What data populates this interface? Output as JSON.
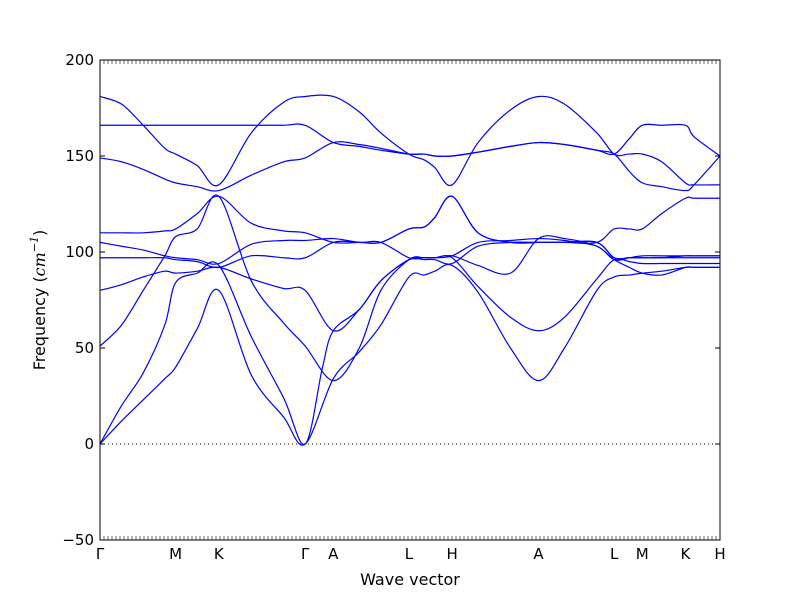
{
  "chart_data": {
    "type": "line",
    "title": "",
    "xlabel": "Wave vector",
    "ylabel_prefix": "Frequency (",
    "ylabel_unit": "cm",
    "ylabel_exp": "−1",
    "ylabel_suffix": ")",
    "ylim": [
      -50,
      200
    ],
    "yticks": [
      -50,
      0,
      50,
      100,
      150,
      200
    ],
    "x_range": [
      0,
      28.7
    ],
    "high_symmetry_points": [
      {
        "label": "Γ",
        "x": 0
      },
      {
        "label": "M",
        "x": 3.5
      },
      {
        "label": "K",
        "x": 5.5
      },
      {
        "label": "Γ",
        "x": 9.5
      },
      {
        "label": "A",
        "x": 10.8
      },
      {
        "label": "L",
        "x": 14.3
      },
      {
        "label": "H",
        "x": 16.3
      },
      {
        "label": "A",
        "x": 20.3
      },
      {
        "label": "L",
        "x": 23.8
      },
      {
        "label": "M",
        "x": 25.1
      },
      {
        "label": "K",
        "x": 27.1
      },
      {
        "label": "H",
        "x": 28.7
      }
    ],
    "zero_line": 0,
    "grid": false,
    "series_color": "#0000ff",
    "bands": [
      {
        "x": [
          0,
          1,
          2,
          3,
          3.5,
          4.5,
          5.5,
          7,
          8.5,
          9.5,
          10.8,
          12,
          13,
          14.3,
          15,
          15.5,
          16.3,
          17.5,
          19,
          20.3,
          21.5,
          23,
          23.8,
          24.5,
          25.1,
          26,
          27.1,
          27.5,
          28.7
        ],
        "y": [
          0,
          12,
          23,
          34,
          40,
          60,
          80,
          36,
          14,
          0,
          34,
          48,
          62,
          87,
          88,
          90,
          93,
          79,
          50,
          33,
          50,
          80,
          87,
          88,
          89,
          90,
          92,
          92,
          92
        ]
      },
      {
        "x": [
          0,
          1,
          2,
          3,
          3.5,
          4.5,
          5.5,
          7,
          8.5,
          9.5,
          10.3,
          10.8,
          12,
          13,
          14.3,
          15,
          15.5,
          16.3,
          17.5,
          19,
          20.3,
          21.5,
          23,
          23.8,
          24.5,
          25.1,
          26,
          27.1,
          27.5,
          28.7
        ],
        "y": [
          0,
          20,
          37,
          62,
          84,
          89,
          93,
          56,
          24,
          0,
          40,
          59,
          70,
          85,
          96,
          97,
          97,
          97,
          82,
          66,
          59,
          66,
          86,
          96,
          95,
          94,
          94,
          94,
          94,
          94
        ]
      },
      {
        "x": [
          0,
          1,
          2,
          3,
          3.5,
          4.5,
          5.5,
          7,
          8.5,
          9.5,
          10.8,
          12,
          13,
          14.3,
          15,
          15.5,
          16.3,
          17.5,
          19,
          20.3,
          21.5,
          23,
          23.8,
          24.5,
          25.1,
          26,
          27.1,
          27.5,
          28.7
        ],
        "y": [
          51,
          62,
          80,
          98,
          108,
          112,
          129,
          85,
          63,
          51,
          33,
          50,
          80,
          96,
          97,
          97,
          98,
          93,
          89,
          107,
          107,
          103,
          96,
          92,
          89,
          88,
          92,
          92,
          92
        ]
      },
      {
        "x": [
          0,
          1,
          2,
          3,
          3.5,
          4.5,
          5.5,
          7,
          8.5,
          9.5,
          10.8,
          12,
          13,
          14.3,
          15,
          15.5,
          16.3,
          17.5,
          19,
          20.3,
          21.5,
          23,
          23.8,
          24.5,
          25.1,
          26,
          27.1,
          27.5,
          28.7
        ],
        "y": [
          80,
          83,
          87,
          90,
          89,
          90,
          92,
          86,
          81,
          80,
          59,
          70,
          85,
          96,
          96,
          96,
          94,
          103,
          105,
          105,
          105,
          105,
          97,
          97,
          97,
          97,
          98,
          98,
          98
        ]
      },
      {
        "x": [
          0,
          1,
          2,
          3,
          3.5,
          4.5,
          5.5,
          7,
          8.5,
          9.5,
          10.8,
          12,
          13,
          14.3,
          15,
          15.5,
          16.3,
          17.5,
          19,
          20.3,
          21.5,
          23,
          23.8,
          24.5,
          25.1,
          26,
          27.1,
          27.5,
          28.7
        ],
        "y": [
          97,
          97,
          97,
          97,
          96,
          95,
          92,
          98,
          97,
          97,
          105,
          105,
          105,
          112,
          113,
          118,
          129,
          110,
          105,
          105,
          105,
          105,
          97,
          97,
          97,
          97,
          97,
          97,
          97
        ]
      },
      {
        "x": [
          0,
          1,
          2,
          3,
          3.5,
          4.5,
          5.5,
          7,
          8.5,
          9.5,
          10.8,
          12,
          13,
          14.3,
          15,
          15.5,
          16.3,
          17.5,
          19,
          20.3,
          21.5,
          23,
          23.8,
          24.5,
          25.1,
          26,
          27.1,
          27.5,
          28.7
        ],
        "y": [
          105,
          103,
          101,
          98,
          97,
          96,
          94,
          104,
          106,
          106,
          107,
          105,
          105,
          97,
          97,
          97,
          98,
          105,
          106,
          107,
          106,
          103,
          96,
          97,
          98,
          98,
          98,
          98,
          98
        ]
      },
      {
        "x": [
          0,
          1,
          2,
          3,
          3.5,
          4.5,
          5.5,
          7,
          8.5,
          9.5,
          10.8,
          12,
          13,
          14.3,
          15,
          15.5,
          16.3,
          17.5,
          19,
          20.3,
          21.5,
          23,
          23.8,
          24.5,
          25.1,
          26,
          27.1,
          27.5,
          28.7
        ],
        "y": [
          110,
          110,
          110,
          111,
          112,
          120,
          129,
          115,
          111,
          110,
          105,
          105,
          105,
          112,
          113,
          118,
          129,
          110,
          105,
          105,
          105,
          105,
          112,
          112,
          112,
          120,
          128,
          128,
          128
        ]
      },
      {
        "x": [
          0,
          1,
          2,
          3,
          3.5,
          4.5,
          5.5,
          7,
          8.5,
          9.5,
          10.8,
          12,
          13,
          14.3,
          15,
          15.5,
          16.3,
          17.5,
          19,
          20.3,
          21.5,
          23,
          23.8,
          24.5,
          25.1,
          26,
          27.1,
          27.5,
          28.7
        ],
        "y": [
          149,
          147,
          143,
          138,
          136,
          134,
          132,
          140,
          147,
          149,
          157,
          156,
          154,
          151,
          151,
          150,
          150,
          152,
          155,
          157,
          156,
          153,
          151,
          142,
          136,
          134,
          132,
          135,
          150
        ]
      },
      {
        "x": [
          0,
          1,
          2,
          3,
          3.5,
          4.5,
          5.5,
          7,
          8.5,
          9.5,
          10.8,
          12,
          13,
          14.3,
          15,
          15.5,
          16.3,
          17.5,
          19,
          20.3,
          21.5,
          23,
          23.8,
          24.5,
          25.1,
          26,
          27.1,
          27.5,
          28.7
        ],
        "y": [
          166,
          166,
          166,
          166,
          166,
          166,
          166,
          166,
          166,
          166,
          157,
          155,
          153,
          151,
          151,
          150,
          150,
          152,
          155,
          157,
          156,
          153,
          151,
          159,
          166,
          166,
          166,
          160,
          150
        ]
      },
      {
        "x": [
          0,
          1,
          2,
          3,
          3.5,
          4.5,
          5.5,
          7,
          8.5,
          9.5,
          10.8,
          12,
          13,
          14.3,
          15,
          15.5,
          16.3,
          17.5,
          19,
          20.3,
          21.5,
          23,
          23.8,
          24.5,
          25.1,
          26,
          27.1,
          27.5,
          28.7
        ],
        "y": [
          181,
          177,
          166,
          154,
          151,
          145,
          135,
          162,
          178,
          181,
          181,
          173,
          162,
          151,
          148,
          144,
          135,
          157,
          174,
          181,
          177,
          162,
          151,
          151,
          151,
          147,
          136,
          135,
          135
        ]
      }
    ]
  }
}
